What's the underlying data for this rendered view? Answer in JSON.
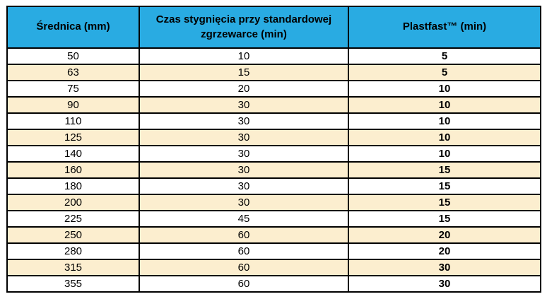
{
  "table": {
    "columns": [
      {
        "key": "diameter",
        "label": "Średnica (mm)"
      },
      {
        "key": "standard_time",
        "label": "Czas stygnięcia przy standardowej zgrzewarce (min)"
      },
      {
        "key": "plastfast_time",
        "label": "Plastfast™ (min)"
      }
    ],
    "rows": [
      [
        "50",
        "10",
        "5"
      ],
      [
        "63",
        "15",
        "5"
      ],
      [
        "75",
        "20",
        "10"
      ],
      [
        "90",
        "30",
        "10"
      ],
      [
        "110",
        "30",
        "10"
      ],
      [
        "125",
        "30",
        "10"
      ],
      [
        "140",
        "30",
        "10"
      ],
      [
        "160",
        "30",
        "15"
      ],
      [
        "180",
        "30",
        "15"
      ],
      [
        "200",
        "30",
        "15"
      ],
      [
        "225",
        "45",
        "15"
      ],
      [
        "250",
        "60",
        "20"
      ],
      [
        "280",
        "60",
        "20"
      ],
      [
        "315",
        "60",
        "30"
      ],
      [
        "355",
        "60",
        "30"
      ]
    ],
    "colors": {
      "header_bg": "#29ABE2",
      "row_bg": "#FFFFFF",
      "row_alt_bg": "#FCEECF",
      "border": "#000000",
      "text": "#000000"
    }
  }
}
